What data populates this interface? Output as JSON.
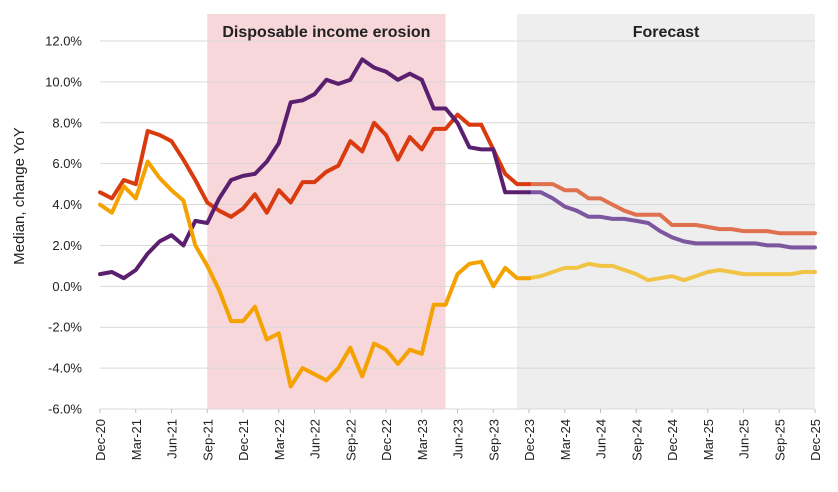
{
  "chart_data": {
    "type": "line",
    "ylabel": "Median, change YoY",
    "ylim": [
      -6,
      12
    ],
    "yticks": [
      -6,
      -4,
      -2,
      0,
      2,
      4,
      6,
      8,
      10,
      12
    ],
    "ytick_labels": [
      "-6.0%",
      "-4.0%",
      "-2.0%",
      "0.0%",
      "2.0%",
      "4.0%",
      "6.0%",
      "8.0%",
      "10.0%",
      "12.0%"
    ],
    "grid": true,
    "x_start": "Dec-20",
    "x_tick_labels": [
      "Dec-20",
      "Mar-21",
      "Jun-21",
      "Sep-21",
      "Dec-21",
      "Mar-22",
      "Jun-22",
      "Sep-22",
      "Dec-22",
      "Mar-23",
      "Jun-23",
      "Sep-23",
      "Dec-23",
      "Mar-24",
      "Jun-24",
      "Sep-24",
      "Dec-24",
      "Mar-25",
      "Jun-25",
      "Sep-25",
      "Dec-25"
    ],
    "regions": [
      {
        "label": "Disposable income erosion",
        "from": "Sep-21",
        "to": "May-23",
        "color": "#f7d7da"
      },
      {
        "label": "Forecast",
        "from": "Nov-23",
        "to": "Dec-25",
        "color": "#eeeeee"
      }
    ],
    "series": [
      {
        "color": "#d93a0e",
        "forecast_color": "#e0714f",
        "values": [
          4.6,
          4.3,
          5.2,
          5.0,
          7.6,
          7.4,
          7.1,
          6.2,
          5.2,
          4.1,
          3.7,
          3.4,
          3.8,
          4.5,
          3.6,
          4.7,
          4.1,
          5.1,
          5.1,
          5.6,
          5.9,
          7.1,
          6.6,
          8.0,
          7.4,
          6.2,
          7.3,
          6.7,
          7.7,
          7.7,
          8.4,
          7.9,
          7.9,
          6.7,
          5.5,
          5.0,
          5.0,
          5.0,
          5.0,
          4.7,
          4.7,
          4.3,
          4.3,
          4.0,
          3.7,
          3.5,
          3.5,
          3.5,
          3.0,
          3.0,
          3.0,
          2.9,
          2.8,
          2.8,
          2.7,
          2.7,
          2.7,
          2.6,
          2.6,
          2.6,
          2.6
        ]
      },
      {
        "color": "#5b1f70",
        "forecast_color": "#7d56a0",
        "values": [
          0.6,
          0.7,
          0.4,
          0.8,
          1.6,
          2.2,
          2.5,
          2.0,
          3.2,
          3.1,
          4.3,
          5.2,
          5.4,
          5.5,
          6.1,
          7.0,
          9.0,
          9.1,
          9.4,
          10.1,
          9.9,
          10.1,
          11.1,
          10.7,
          10.5,
          10.1,
          10.4,
          10.1,
          8.7,
          8.7,
          8.0,
          6.8,
          6.7,
          6.7,
          4.6,
          4.6,
          4.6,
          4.6,
          4.3,
          3.9,
          3.7,
          3.4,
          3.4,
          3.3,
          3.3,
          3.2,
          3.1,
          2.7,
          2.4,
          2.2,
          2.1,
          2.1,
          2.1,
          2.1,
          2.1,
          2.1,
          2.0,
          2.0,
          1.9,
          1.9,
          1.9
        ]
      },
      {
        "color": "#f5a100",
        "forecast_color": "#f2c445",
        "values": [
          4.0,
          3.6,
          4.9,
          4.3,
          6.1,
          5.3,
          4.7,
          4.2,
          2.0,
          1.0,
          -0.2,
          -1.7,
          -1.7,
          -1.0,
          -2.6,
          -2.3,
          -4.9,
          -4.0,
          -4.3,
          -4.6,
          -4.0,
          -3.0,
          -4.4,
          -2.8,
          -3.1,
          -3.8,
          -3.1,
          -3.3,
          -0.9,
          -0.9,
          0.6,
          1.1,
          1.2,
          0.0,
          0.9,
          0.4,
          0.4,
          0.5,
          0.7,
          0.9,
          0.9,
          1.1,
          1.0,
          1.0,
          0.8,
          0.6,
          0.3,
          0.4,
          0.5,
          0.3,
          0.5,
          0.7,
          0.8,
          0.7,
          0.6,
          0.6,
          0.6,
          0.6,
          0.6,
          0.7,
          0.7
        ]
      }
    ],
    "forecast_from_index": 36
  }
}
